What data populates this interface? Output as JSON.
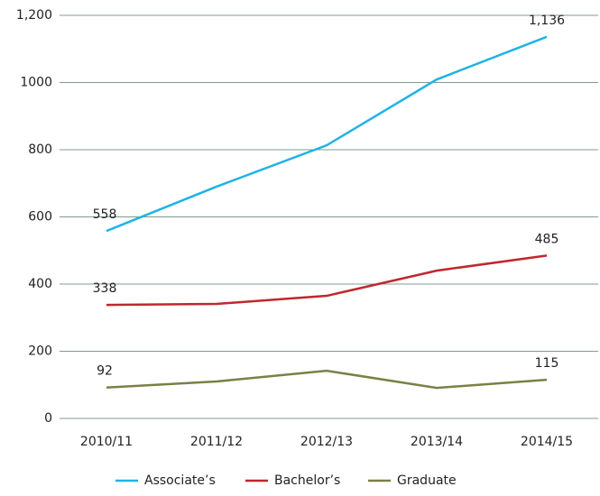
{
  "chart_data": {
    "type": "line",
    "categories": [
      "2010/11",
      "2011/12",
      "2012/13",
      "2013/14",
      "2014/15"
    ],
    "series": [
      {
        "name": "Associate’s",
        "color": "#1fb3e6",
        "values": [
          558,
          690,
          813,
          1009,
          1136
        ],
        "value_labels": [
          "558",
          null,
          null,
          null,
          "1,136"
        ]
      },
      {
        "name": "Bachelor’s",
        "color": "#c0272d",
        "values": [
          338,
          341,
          365,
          440,
          485
        ],
        "value_labels": [
          "338",
          null,
          null,
          null,
          "485"
        ]
      },
      {
        "name": "Graduate",
        "color": "#7a8046",
        "values": [
          92,
          110,
          142,
          91,
          115
        ],
        "value_labels": [
          "92",
          null,
          null,
          null,
          "115"
        ]
      }
    ],
    "ylim": [
      0,
      1200
    ],
    "yticks": [
      0,
      200,
      400,
      600,
      800,
      1000,
      {
        "value": 1200,
        "label": "1,200"
      }
    ],
    "grid": true,
    "legend": "bottom"
  }
}
